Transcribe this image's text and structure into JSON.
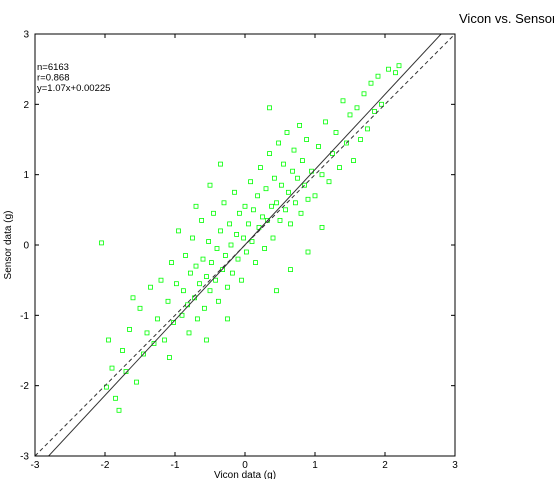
{
  "chart_data": {
    "type": "scatter",
    "title": "Vicon vs. Sensor",
    "xlabel": "Vicon data (g)",
    "ylabel": "Sensor data (g)",
    "xlim": [
      -3,
      3
    ],
    "ylim": [
      -3,
      3
    ],
    "xticks": [
      "-3",
      "-2",
      "-1",
      "0",
      "1",
      "2",
      "3"
    ],
    "yticks": [
      "-3",
      "-2",
      "-1",
      "0",
      "1",
      "2",
      "3"
    ],
    "grid": false,
    "annotation": [
      "n=6163",
      "r=0.868",
      "y=1.07x+0.00225"
    ],
    "stats": {
      "n": 6163,
      "r": 0.868,
      "slope": 1.07,
      "intercept": 0.00225
    },
    "marker_color": "#00ff00",
    "fit_line": {
      "slope": 1.07,
      "intercept": 0.00225,
      "style": "solid",
      "color": "#333333"
    },
    "identity_line": {
      "slope": 1,
      "intercept": 0,
      "style": "dashed",
      "color": "#333333"
    },
    "points": [
      [
        -1.98,
        -2.02
      ],
      [
        -2.05,
        0.03
      ],
      [
        -1.95,
        -1.35
      ],
      [
        -1.9,
        -1.75
      ],
      [
        -1.85,
        -2.18
      ],
      [
        -1.8,
        -2.35
      ],
      [
        -1.75,
        -1.5
      ],
      [
        -1.7,
        -1.8
      ],
      [
        -1.65,
        -1.2
      ],
      [
        -1.6,
        -0.75
      ],
      [
        -1.55,
        -1.95
      ],
      [
        -1.5,
        -0.9
      ],
      [
        -1.45,
        -1.55
      ],
      [
        -1.4,
        -1.25
      ],
      [
        -1.35,
        -0.6
      ],
      [
        -1.3,
        -1.4
      ],
      [
        -1.25,
        -1.05
      ],
      [
        -1.2,
        -0.5
      ],
      [
        -1.15,
        -1.35
      ],
      [
        -1.1,
        -0.8
      ],
      [
        -1.08,
        -1.6
      ],
      [
        -1.05,
        -0.25
      ],
      [
        -1.02,
        -1.1
      ],
      [
        -0.98,
        -0.55
      ],
      [
        -0.95,
        0.2
      ],
      [
        -0.9,
        -1.0
      ],
      [
        -0.88,
        -0.65
      ],
      [
        -0.85,
        -0.15
      ],
      [
        -0.82,
        -0.85
      ],
      [
        -0.8,
        -1.25
      ],
      [
        -0.78,
        -0.4
      ],
      [
        -0.75,
        0.1
      ],
      [
        -0.72,
        -0.75
      ],
      [
        -0.7,
        -0.3
      ],
      [
        -0.68,
        -1.05
      ],
      [
        -0.65,
        -0.55
      ],
      [
        -0.62,
        0.35
      ],
      [
        -0.6,
        -0.2
      ],
      [
        -0.58,
        -0.9
      ],
      [
        -0.55,
        -0.45
      ],
      [
        -0.52,
        0.05
      ],
      [
        -0.5,
        -0.65
      ],
      [
        -0.48,
        -0.25
      ],
      [
        -0.45,
        0.45
      ],
      [
        -0.42,
        -0.5
      ],
      [
        -0.4,
        -0.05
      ],
      [
        -0.38,
        -0.8
      ],
      [
        -0.35,
        0.2
      ],
      [
        -0.32,
        -0.35
      ],
      [
        -0.3,
        0.6
      ],
      [
        -0.28,
        -0.15
      ],
      [
        -0.25,
        -0.6
      ],
      [
        -0.22,
        0.3
      ],
      [
        -0.2,
        0.0
      ],
      [
        -0.18,
        -0.4
      ],
      [
        -0.15,
        0.75
      ],
      [
        -0.12,
        0.15
      ],
      [
        -0.1,
        -0.2
      ],
      [
        -0.08,
        0.45
      ],
      [
        -0.05,
        -0.5
      ],
      [
        -0.02,
        0.1
      ],
      [
        0.0,
        0.55
      ],
      [
        0.02,
        -0.1
      ],
      [
        0.05,
        0.3
      ],
      [
        0.08,
        0.9
      ],
      [
        0.1,
        0.05
      ],
      [
        0.12,
        0.5
      ],
      [
        0.15,
        -0.25
      ],
      [
        0.18,
        0.7
      ],
      [
        0.2,
        0.25
      ],
      [
        0.22,
        1.1
      ],
      [
        0.25,
        0.4
      ],
      [
        0.28,
        -0.05
      ],
      [
        0.3,
        0.8
      ],
      [
        0.32,
        0.35
      ],
      [
        0.35,
        1.3
      ],
      [
        0.38,
        0.55
      ],
      [
        0.4,
        0.1
      ],
      [
        0.42,
        0.95
      ],
      [
        0.45,
        0.6
      ],
      [
        0.48,
        1.45
      ],
      [
        0.5,
        0.35
      ],
      [
        0.52,
        0.85
      ],
      [
        0.55,
        1.15
      ],
      [
        0.58,
        0.5
      ],
      [
        0.6,
        1.6
      ],
      [
        0.62,
        0.75
      ],
      [
        0.65,
        0.3
      ],
      [
        0.68,
        1.05
      ],
      [
        0.7,
        1.35
      ],
      [
        0.72,
        0.6
      ],
      [
        0.75,
        0.95
      ],
      [
        0.78,
        1.7
      ],
      [
        0.8,
        0.45
      ],
      [
        0.82,
        1.2
      ],
      [
        0.85,
        0.85
      ],
      [
        0.88,
        1.5
      ],
      [
        0.9,
        0.65
      ],
      [
        0.95,
        1.05
      ],
      [
        1.0,
        0.7
      ],
      [
        1.05,
        1.4
      ],
      [
        1.1,
        1.0
      ],
      [
        1.15,
        1.75
      ],
      [
        1.2,
        0.9
      ],
      [
        1.25,
        1.3
      ],
      [
        1.3,
        1.6
      ],
      [
        1.35,
        1.1
      ],
      [
        1.4,
        2.05
      ],
      [
        1.45,
        1.45
      ],
      [
        1.5,
        1.85
      ],
      [
        1.55,
        1.2
      ],
      [
        1.6,
        1.95
      ],
      [
        1.65,
        1.5
      ],
      [
        1.7,
        2.15
      ],
      [
        1.75,
        1.65
      ],
      [
        1.8,
        2.3
      ],
      [
        1.85,
        1.9
      ],
      [
        1.9,
        2.4
      ],
      [
        1.95,
        2.0
      ],
      [
        2.05,
        2.5
      ],
      [
        2.15,
        2.45
      ],
      [
        2.2,
        2.55
      ],
      [
        -0.35,
        1.15
      ],
      [
        -0.5,
        0.85
      ],
      [
        -0.7,
        0.55
      ],
      [
        0.35,
        1.95
      ],
      [
        0.45,
        -0.65
      ],
      [
        0.65,
        -0.35
      ],
      [
        -0.25,
        -1.05
      ],
      [
        -0.55,
        -1.35
      ],
      [
        0.9,
        -0.1
      ],
      [
        1.1,
        0.25
      ]
    ]
  }
}
